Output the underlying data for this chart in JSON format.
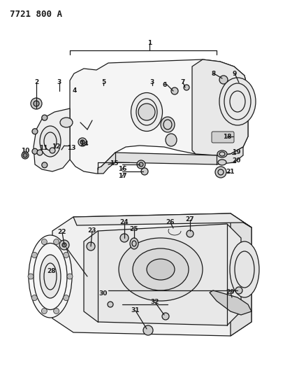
{
  "title": "7721 800 A",
  "bg_color": "#ffffff",
  "line_color": "#1a1a1a",
  "figsize": [
    4.28,
    5.33
  ],
  "dpi": 100,
  "top_labels": [
    [
      "1",
      214,
      62
    ],
    [
      "2",
      52,
      118
    ],
    [
      "3",
      85,
      118
    ],
    [
      "4",
      107,
      130
    ],
    [
      "5",
      148,
      118
    ],
    [
      "3",
      218,
      118
    ],
    [
      "6",
      236,
      122
    ],
    [
      "7",
      262,
      118
    ],
    [
      "8",
      306,
      105
    ],
    [
      "9",
      336,
      105
    ],
    [
      "18",
      325,
      195
    ],
    [
      "19",
      338,
      218
    ],
    [
      "20",
      338,
      230
    ],
    [
      "21",
      330,
      245
    ],
    [
      "14",
      120,
      205
    ],
    [
      "13",
      102,
      212
    ],
    [
      "12",
      80,
      210
    ],
    [
      "11",
      62,
      212
    ],
    [
      "10",
      36,
      215
    ],
    [
      "15",
      163,
      233
    ],
    [
      "16",
      175,
      242
    ],
    [
      "17",
      175,
      252
    ]
  ],
  "bot_labels": [
    [
      "24",
      178,
      318
    ],
    [
      "22",
      89,
      332
    ],
    [
      "23",
      132,
      330
    ],
    [
      "25",
      192,
      328
    ],
    [
      "26",
      244,
      318
    ],
    [
      "27",
      272,
      314
    ],
    [
      "28",
      74,
      388
    ],
    [
      "29",
      330,
      418
    ],
    [
      "32",
      222,
      432
    ],
    [
      "31",
      194,
      444
    ],
    [
      "30",
      148,
      420
    ]
  ]
}
